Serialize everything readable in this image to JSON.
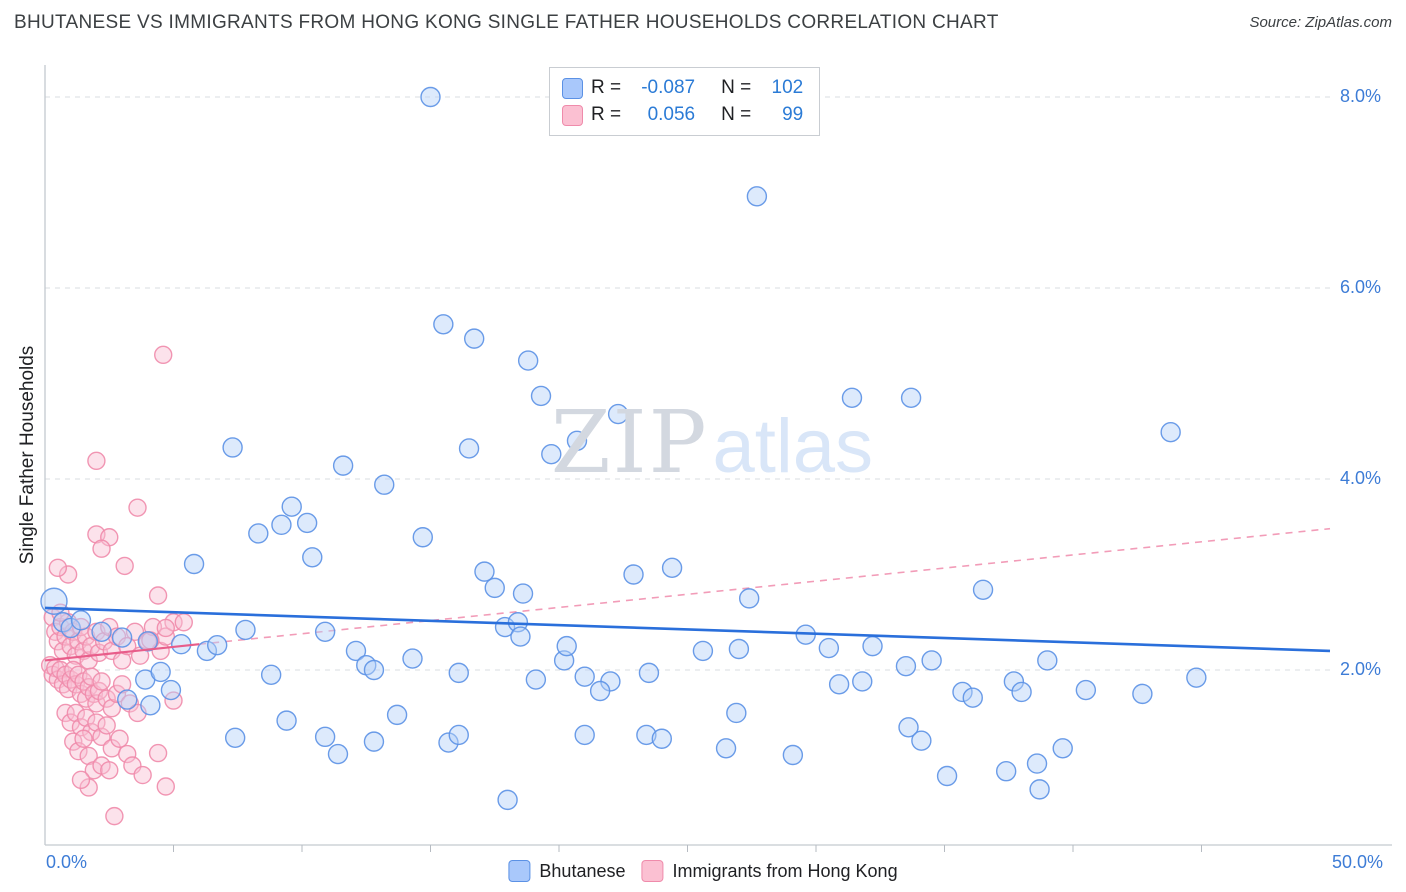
{
  "header": {
    "title": "BHUTANESE VS IMMIGRANTS FROM HONG KONG SINGLE FATHER HOUSEHOLDS CORRELATION CHART",
    "source": "Source: ZipAtlas.com"
  },
  "legend_box": {
    "rows": [
      {
        "r_label": "R =",
        "r_value": "-0.087",
        "n_label": "N =",
        "n_value": "102"
      },
      {
        "r_label": "R =",
        "r_value": "0.056",
        "n_label": "N =",
        "n_value": "99"
      }
    ]
  },
  "axes": {
    "y_title": "Single Father Households",
    "y_ticks": [
      "8.0%",
      "6.0%",
      "4.0%",
      "2.0%"
    ],
    "x_min_label": "0.0%",
    "x_max_label": "50.0%"
  },
  "watermark": {
    "zip": "ZIP",
    "atlas": "atlas"
  },
  "bottom_legend": [
    {
      "label": "Bhutanese",
      "color": "#a9c8fb",
      "border": "#5b91e5"
    },
    {
      "label": "Immigrants from Hong Kong",
      "color": "#fbc0d2",
      "border": "#ef8bab"
    }
  ],
  "chart_data": {
    "type": "scatter",
    "title": "BHUTANESE VS IMMIGRANTS FROM HONG KONG SINGLE FATHER HOUSEHOLDS CORRELATION CHART",
    "xlabel": "",
    "ylabel": "Single Father Households",
    "xlim": [
      0,
      50
    ],
    "ylim": [
      0,
      8.4
    ],
    "x_tick_labels": [
      "0.0%",
      "50.0%"
    ],
    "y_tick_values": [
      2,
      4,
      6,
      8
    ],
    "y_tick_labels": [
      "2.0%",
      "4.0%",
      "6.0%",
      "8.0%"
    ],
    "grid": true,
    "legend_position": "top-center",
    "units": "percent",
    "series": [
      {
        "name": "Bhutanese",
        "R": -0.087,
        "N": 102,
        "marker_fill": "#b3d0f9",
        "marker_stroke": "#5b91e5",
        "trend": {
          "type": "solid",
          "x": [
            0,
            50
          ],
          "y": [
            2.65,
            2.2
          ],
          "color": "#2a6fdb"
        },
        "points": [
          [
            15.0,
            8.0
          ],
          [
            27.7,
            6.96
          ],
          [
            15.5,
            5.62
          ],
          [
            16.7,
            5.47
          ],
          [
            18.8,
            5.24
          ],
          [
            19.3,
            4.87
          ],
          [
            22.3,
            4.68
          ],
          [
            31.4,
            4.85
          ],
          [
            33.7,
            4.85
          ],
          [
            43.8,
            4.49
          ],
          [
            20.7,
            4.4
          ],
          [
            19.7,
            4.26
          ],
          [
            16.5,
            4.32
          ],
          [
            11.6,
            4.14
          ],
          [
            7.3,
            4.33
          ],
          [
            13.2,
            3.94
          ],
          [
            9.6,
            3.71
          ],
          [
            10.2,
            3.54
          ],
          [
            14.7,
            3.39
          ],
          [
            8.3,
            3.43
          ],
          [
            9.2,
            3.52
          ],
          [
            10.4,
            3.18
          ],
          [
            5.8,
            3.11
          ],
          [
            22.9,
            3.0
          ],
          [
            24.4,
            3.07
          ],
          [
            17.5,
            2.86
          ],
          [
            17.1,
            3.03
          ],
          [
            18.6,
            2.8
          ],
          [
            27.4,
            2.75
          ],
          [
            36.5,
            2.84
          ],
          [
            0.35,
            2.72,
            13
          ],
          [
            0.7,
            2.5
          ],
          [
            1.0,
            2.44
          ],
          [
            1.4,
            2.52
          ],
          [
            2.2,
            2.4
          ],
          [
            3.0,
            2.34
          ],
          [
            4.0,
            2.3
          ],
          [
            5.3,
            2.27
          ],
          [
            6.3,
            2.2
          ],
          [
            6.7,
            2.26
          ],
          [
            7.8,
            2.42
          ],
          [
            8.8,
            1.95
          ],
          [
            10.9,
            2.4
          ],
          [
            12.1,
            2.2
          ],
          [
            12.5,
            2.05
          ],
          [
            12.8,
            2.0
          ],
          [
            14.3,
            2.12
          ],
          [
            16.1,
            1.97
          ],
          [
            17.9,
            2.45
          ],
          [
            18.4,
            2.5
          ],
          [
            19.1,
            1.9
          ],
          [
            20.2,
            2.1
          ],
          [
            21.0,
            1.93
          ],
          [
            22.0,
            1.88
          ],
          [
            23.5,
            1.97
          ],
          [
            20.3,
            2.25
          ],
          [
            18.5,
            2.35
          ],
          [
            21.6,
            1.78
          ],
          [
            23.4,
            1.32
          ],
          [
            24.0,
            1.28
          ],
          [
            25.6,
            2.2
          ],
          [
            26.9,
            1.55
          ],
          [
            27.0,
            2.22
          ],
          [
            29.6,
            2.37
          ],
          [
            30.5,
            2.23
          ],
          [
            30.9,
            1.85
          ],
          [
            31.8,
            1.88
          ],
          [
            32.2,
            2.25
          ],
          [
            33.5,
            2.04
          ],
          [
            34.5,
            2.1
          ],
          [
            33.6,
            1.4
          ],
          [
            34.1,
            1.26
          ],
          [
            35.1,
            0.89
          ],
          [
            35.7,
            1.77
          ],
          [
            36.1,
            1.71
          ],
          [
            37.4,
            0.94
          ],
          [
            37.7,
            1.88
          ],
          [
            38.0,
            1.77
          ],
          [
            38.6,
            1.02
          ],
          [
            38.7,
            0.75
          ],
          [
            39.0,
            2.1
          ],
          [
            39.6,
            1.18
          ],
          [
            40.5,
            1.79
          ],
          [
            42.7,
            1.75
          ],
          [
            44.8,
            1.92
          ],
          [
            29.1,
            1.11
          ],
          [
            26.5,
            1.18
          ],
          [
            21.0,
            1.32
          ],
          [
            18.0,
            0.64
          ],
          [
            15.7,
            1.24
          ],
          [
            16.1,
            1.32
          ],
          [
            13.7,
            1.53
          ],
          [
            12.8,
            1.25
          ],
          [
            11.4,
            1.12
          ],
          [
            10.9,
            1.3
          ],
          [
            9.4,
            1.47
          ],
          [
            7.4,
            1.29
          ],
          [
            3.9,
            1.9
          ],
          [
            4.5,
            1.98
          ],
          [
            4.9,
            1.79
          ],
          [
            4.1,
            1.63
          ],
          [
            3.2,
            1.69
          ]
        ]
      },
      {
        "name": "Immigrants from Hong Kong",
        "R": 0.056,
        "N": 99,
        "marker_fill": "#f8bfd2",
        "marker_stroke": "#ef8bab",
        "trend": {
          "type": "solid",
          "x": [
            0,
            6
          ],
          "y": [
            2.1,
            2.27
          ],
          "color": "#e85d8a"
        },
        "trend_extrapolation": {
          "type": "dashed",
          "x": [
            6,
            50
          ],
          "y": [
            2.27,
            3.48
          ],
          "color": "#f29cb8"
        },
        "points": [
          [
            4.6,
            5.3
          ],
          [
            2.0,
            4.19
          ],
          [
            3.6,
            3.7
          ],
          [
            2.0,
            3.42
          ],
          [
            2.5,
            3.39
          ],
          [
            2.2,
            3.27
          ],
          [
            3.1,
            3.09
          ],
          [
            0.9,
            3.0
          ],
          [
            0.5,
            3.07
          ],
          [
            4.4,
            2.78
          ],
          [
            0.3,
            2.55
          ],
          [
            0.4,
            2.4
          ],
          [
            0.5,
            2.3
          ],
          [
            0.6,
            2.45
          ],
          [
            0.7,
            2.2
          ],
          [
            0.8,
            2.35
          ],
          [
            0.9,
            2.5
          ],
          [
            1.0,
            2.25
          ],
          [
            1.1,
            2.4
          ],
          [
            1.2,
            2.15
          ],
          [
            1.3,
            2.3
          ],
          [
            1.4,
            2.45
          ],
          [
            1.5,
            2.2
          ],
          [
            1.6,
            2.35
          ],
          [
            1.7,
            2.1
          ],
          [
            1.8,
            2.25
          ],
          [
            2.0,
            2.4
          ],
          [
            2.1,
            2.18
          ],
          [
            2.3,
            2.3
          ],
          [
            2.5,
            2.45
          ],
          [
            2.6,
            2.2
          ],
          [
            2.8,
            2.35
          ],
          [
            3.0,
            2.1
          ],
          [
            3.2,
            2.25
          ],
          [
            3.5,
            2.4
          ],
          [
            3.7,
            2.15
          ],
          [
            4.0,
            2.3
          ],
          [
            4.2,
            2.45
          ],
          [
            4.5,
            2.2
          ],
          [
            4.7,
            2.35
          ],
          [
            5.0,
            2.5
          ],
          [
            5.4,
            2.5
          ],
          [
            0.2,
            2.05
          ],
          [
            0.3,
            1.95
          ],
          [
            0.4,
            2.02
          ],
          [
            0.5,
            1.9
          ],
          [
            0.6,
            2.0
          ],
          [
            0.7,
            1.85
          ],
          [
            0.8,
            1.95
          ],
          [
            0.9,
            1.8
          ],
          [
            1.0,
            1.9
          ],
          [
            1.1,
            2.0
          ],
          [
            1.2,
            1.85
          ],
          [
            1.3,
            1.95
          ],
          [
            1.4,
            1.75
          ],
          [
            1.5,
            1.88
          ],
          [
            1.6,
            1.7
          ],
          [
            1.7,
            1.82
          ],
          [
            1.8,
            1.93
          ],
          [
            1.9,
            1.75
          ],
          [
            2.0,
            1.65
          ],
          [
            2.1,
            1.78
          ],
          [
            2.2,
            1.88
          ],
          [
            2.4,
            1.7
          ],
          [
            2.6,
            1.6
          ],
          [
            2.8,
            1.75
          ],
          [
            3.0,
            1.85
          ],
          [
            3.3,
            1.65
          ],
          [
            3.6,
            1.55
          ],
          [
            4.1,
            2.31
          ],
          [
            4.7,
            2.44
          ],
          [
            5.0,
            1.68
          ],
          [
            0.8,
            1.55
          ],
          [
            1.0,
            1.45
          ],
          [
            1.2,
            1.55
          ],
          [
            1.4,
            1.4
          ],
          [
            1.6,
            1.5
          ],
          [
            1.8,
            1.35
          ],
          [
            2.0,
            1.45
          ],
          [
            2.2,
            1.3
          ],
          [
            2.4,
            1.42
          ],
          [
            1.1,
            1.25
          ],
          [
            1.3,
            1.15
          ],
          [
            1.5,
            1.28
          ],
          [
            1.7,
            1.1
          ],
          [
            2.6,
            1.18
          ],
          [
            2.9,
            1.28
          ],
          [
            3.2,
            1.12
          ],
          [
            1.9,
            0.95
          ],
          [
            2.2,
            1.0
          ],
          [
            2.5,
            0.95
          ],
          [
            3.4,
            1.0
          ],
          [
            4.4,
            1.13
          ],
          [
            1.7,
            0.77
          ],
          [
            2.7,
            0.47
          ],
          [
            4.7,
            0.78
          ],
          [
            1.4,
            0.85
          ],
          [
            3.8,
            0.9
          ],
          [
            0.6,
            2.6
          ]
        ]
      }
    ]
  }
}
